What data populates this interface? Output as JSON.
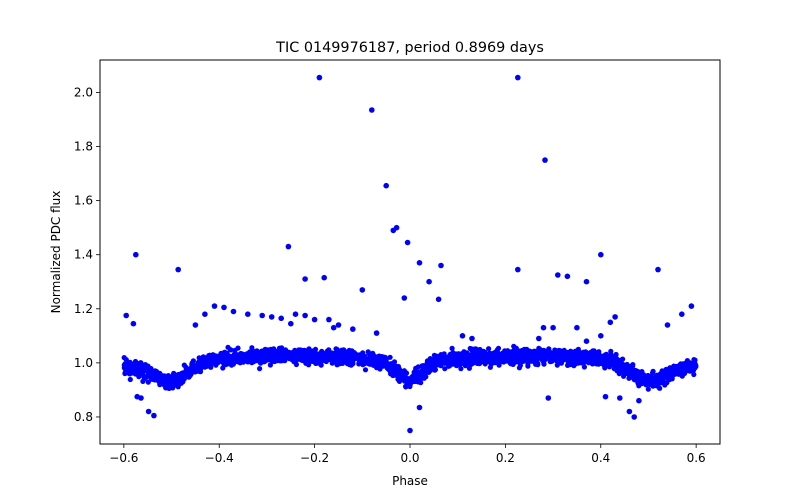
{
  "chart_data": {
    "type": "scatter",
    "title": "TIC 0149976187, period 0.8969 days",
    "xlabel": "Phase",
    "ylabel": "Normalized PDC flux",
    "xlim": [
      -0.65,
      0.65
    ],
    "ylim": [
      0.7,
      2.12
    ],
    "xticks": [
      -0.6,
      -0.4,
      -0.2,
      0.0,
      0.2,
      0.4,
      0.6
    ],
    "xtick_labels": [
      "−0.6",
      "−0.4",
      "−0.2",
      "0.0",
      "0.2",
      "0.4",
      "0.6"
    ],
    "yticks": [
      0.8,
      1.0,
      1.2,
      1.4,
      1.6,
      1.8,
      2.0
    ],
    "ytick_labels": [
      "0.8",
      "1.0",
      "1.2",
      "1.4",
      "1.6",
      "1.8",
      "2.0"
    ],
    "grid": false,
    "legend": "none",
    "marker_color": "#0000ff",
    "marker": "filled circle",
    "period_days": 0.8969,
    "phase_range": [
      -0.6,
      0.6
    ],
    "light_curve_profile": {
      "baseline_flux": 1.0,
      "secondary_eclipse_flux_at_phase_0": 0.94,
      "primary_eclipse_flux_at_phase_plus_minus_0_5": 0.93,
      "max_flux_near_phase_plus_minus_0_25": 1.025,
      "scatter_sigma": 0.013
    },
    "outlier_points": [
      {
        "x": -0.595,
        "y": 1.175
      },
      {
        "x": -0.58,
        "y": 1.145
      },
      {
        "x": -0.575,
        "y": 1.4
      },
      {
        "x": -0.572,
        "y": 0.875
      },
      {
        "x": -0.564,
        "y": 0.87
      },
      {
        "x": -0.548,
        "y": 0.82
      },
      {
        "x": -0.537,
        "y": 0.805
      },
      {
        "x": -0.486,
        "y": 1.345
      },
      {
        "x": -0.45,
        "y": 1.14
      },
      {
        "x": -0.43,
        "y": 1.18
      },
      {
        "x": -0.41,
        "y": 1.21
      },
      {
        "x": -0.39,
        "y": 1.205
      },
      {
        "x": -0.37,
        "y": 1.19
      },
      {
        "x": -0.34,
        "y": 1.18
      },
      {
        "x": -0.31,
        "y": 1.175
      },
      {
        "x": -0.29,
        "y": 1.17
      },
      {
        "x": -0.27,
        "y": 1.165
      },
      {
        "x": -0.255,
        "y": 1.43
      },
      {
        "x": -0.25,
        "y": 1.145
      },
      {
        "x": -0.24,
        "y": 1.18
      },
      {
        "x": -0.22,
        "y": 1.175
      },
      {
        "x": -0.22,
        "y": 1.31
      },
      {
        "x": -0.2,
        "y": 1.16
      },
      {
        "x": -0.19,
        "y": 2.055
      },
      {
        "x": -0.18,
        "y": 1.315
      },
      {
        "x": -0.17,
        "y": 1.16
      },
      {
        "x": -0.16,
        "y": 1.13
      },
      {
        "x": -0.15,
        "y": 1.14
      },
      {
        "x": -0.12,
        "y": 1.125
      },
      {
        "x": -0.1,
        "y": 1.27
      },
      {
        "x": -0.08,
        "y": 1.935
      },
      {
        "x": -0.07,
        "y": 1.11
      },
      {
        "x": -0.05,
        "y": 1.655
      },
      {
        "x": -0.035,
        "y": 1.49
      },
      {
        "x": -0.028,
        "y": 1.5
      },
      {
        "x": -0.012,
        "y": 1.24
      },
      {
        "x": -0.005,
        "y": 1.445
      },
      {
        "x": 0.0,
        "y": 0.75
      },
      {
        "x": 0.02,
        "y": 1.37
      },
      {
        "x": 0.02,
        "y": 0.835
      },
      {
        "x": 0.04,
        "y": 1.3
      },
      {
        "x": 0.06,
        "y": 1.235
      },
      {
        "x": 0.065,
        "y": 1.36
      },
      {
        "x": 0.11,
        "y": 1.1
      },
      {
        "x": 0.13,
        "y": 1.09
      },
      {
        "x": 0.226,
        "y": 2.055
      },
      {
        "x": 0.226,
        "y": 1.345
      },
      {
        "x": 0.27,
        "y": 1.09
      },
      {
        "x": 0.28,
        "y": 1.13
      },
      {
        "x": 0.283,
        "y": 1.75
      },
      {
        "x": 0.29,
        "y": 0.87
      },
      {
        "x": 0.3,
        "y": 1.13
      },
      {
        "x": 0.31,
        "y": 1.325
      },
      {
        "x": 0.33,
        "y": 1.32
      },
      {
        "x": 0.35,
        "y": 1.13
      },
      {
        "x": 0.37,
        "y": 1.08
      },
      {
        "x": 0.37,
        "y": 1.3
      },
      {
        "x": 0.4,
        "y": 1.4
      },
      {
        "x": 0.4,
        "y": 1.1
      },
      {
        "x": 0.41,
        "y": 0.875
      },
      {
        "x": 0.42,
        "y": 1.15
      },
      {
        "x": 0.43,
        "y": 1.17
      },
      {
        "x": 0.44,
        "y": 0.87
      },
      {
        "x": 0.46,
        "y": 0.82
      },
      {
        "x": 0.47,
        "y": 0.8
      },
      {
        "x": 0.48,
        "y": 0.86
      },
      {
        "x": 0.52,
        "y": 1.345
      },
      {
        "x": 0.54,
        "y": 1.14
      },
      {
        "x": 0.57,
        "y": 1.18
      },
      {
        "x": 0.59,
        "y": 1.21
      }
    ]
  }
}
